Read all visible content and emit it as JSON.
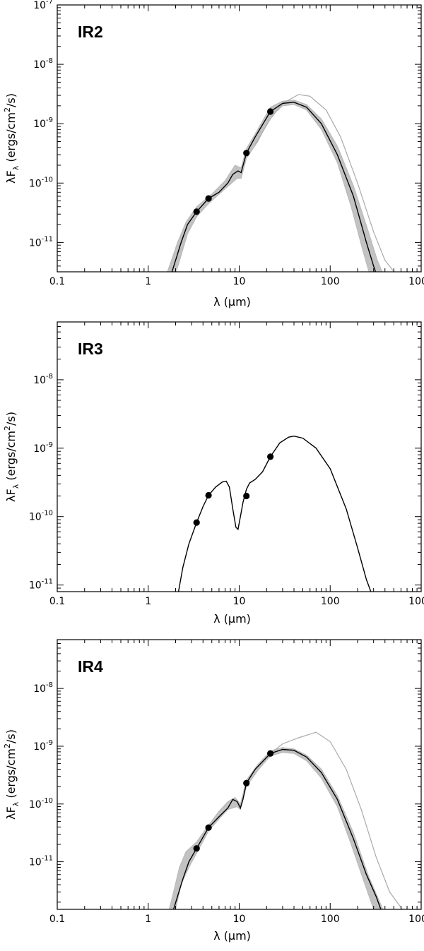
{
  "chart_data": [
    {
      "type": "line",
      "title": "IR2",
      "xlabel": "λ (μm)",
      "ylabel_main": "λF",
      "ylabel_sub": "λ",
      "ylabel_tail": " (ergs/cm",
      "ylabel_sup": "2",
      "ylabel_end": "/s)",
      "xscale": "log",
      "yscale": "log",
      "xlim": [
        0.1,
        1000
      ],
      "ylim": [
        3.2e-12,
        1e-07
      ],
      "x_ticks": [
        0.1,
        1,
        10,
        100,
        1000
      ],
      "x_tick_labels": [
        "0.1",
        "1",
        "10",
        "100",
        "1000"
      ],
      "y_ticks": [
        1e-11,
        1e-10,
        1e-09,
        1e-08,
        1e-07
      ],
      "y_tick_labels": [
        {
          "base": "10",
          "exp": "-11"
        },
        {
          "base": "10",
          "exp": "-10"
        },
        {
          "base": "10",
          "exp": "-9"
        },
        {
          "base": "10",
          "exp": "-8"
        },
        {
          "base": "10",
          "exp": "-7"
        }
      ],
      "points": [
        {
          "x": 3.4,
          "y": 3.3e-11
        },
        {
          "x": 4.6,
          "y": 5.5e-11
        },
        {
          "x": 12,
          "y": 3.2e-10
        },
        {
          "x": 22,
          "y": 1.6e-09
        }
      ],
      "best_fit": [
        [
          1.8,
          3e-12
        ],
        [
          2.0,
          5e-12
        ],
        [
          2.3,
          1e-11
        ],
        [
          2.7,
          2e-11
        ],
        [
          3.4,
          3.3e-11
        ],
        [
          4.6,
          5.5e-11
        ],
        [
          6.0,
          7e-11
        ],
        [
          7.5,
          1e-10
        ],
        [
          8.5,
          1.4e-10
        ],
        [
          9.7,
          1.6e-10
        ],
        [
          10.5,
          1.5e-10
        ],
        [
          12,
          3.2e-10
        ],
        [
          15,
          6e-10
        ],
        [
          22,
          1.6e-09
        ],
        [
          30,
          2.2e-09
        ],
        [
          40,
          2.3e-09
        ],
        [
          55,
          1.9e-09
        ],
        [
          80,
          1e-09
        ],
        [
          120,
          3e-10
        ],
        [
          180,
          6e-11
        ],
        [
          250,
          1e-11
        ],
        [
          300,
          4e-12
        ],
        [
          320,
          3e-12
        ]
      ],
      "band_upper": [
        [
          1.6,
          3e-12
        ],
        [
          1.8,
          5e-12
        ],
        [
          2.1,
          1e-11
        ],
        [
          2.6,
          2.2e-11
        ],
        [
          3.4,
          4e-11
        ],
        [
          5,
          6.5e-11
        ],
        [
          7,
          1.1e-10
        ],
        [
          9,
          2e-10
        ],
        [
          10.5,
          1.8e-10
        ],
        [
          12,
          3.8e-10
        ],
        [
          16,
          8e-10
        ],
        [
          22,
          1.9e-09
        ],
        [
          30,
          2.4e-09
        ],
        [
          40,
          2.5e-09
        ],
        [
          55,
          2.1e-09
        ],
        [
          80,
          1.2e-09
        ],
        [
          120,
          4.2e-10
        ],
        [
          180,
          9e-11
        ],
        [
          260,
          1.6e-11
        ],
        [
          330,
          5e-12
        ],
        [
          380,
          3e-12
        ]
      ],
      "band_lower": [
        [
          2.0,
          3e-12
        ],
        [
          2.3,
          6e-12
        ],
        [
          2.7,
          1.4e-11
        ],
        [
          3.4,
          2.7e-11
        ],
        [
          4.6,
          4.5e-11
        ],
        [
          7,
          8e-11
        ],
        [
          9.5,
          1.2e-10
        ],
        [
          10.5,
          1.2e-10
        ],
        [
          12,
          2.6e-10
        ],
        [
          16,
          5e-10
        ],
        [
          22,
          1.3e-09
        ],
        [
          30,
          2e-09
        ],
        [
          40,
          2.1e-09
        ],
        [
          55,
          1.7e-09
        ],
        [
          80,
          8e-10
        ],
        [
          120,
          2.2e-10
        ],
        [
          170,
          4e-11
        ],
        [
          230,
          7e-12
        ],
        [
          270,
          3e-12
        ]
      ],
      "outlier_model": [
        [
          15,
          4.5e-10
        ],
        [
          22,
          1.2e-09
        ],
        [
          30,
          2.2e-09
        ],
        [
          45,
          3.1e-09
        ],
        [
          60,
          2.9e-09
        ],
        [
          90,
          1.7e-09
        ],
        [
          130,
          6e-10
        ],
        [
          200,
          1e-10
        ],
        [
          300,
          1.5e-11
        ],
        [
          400,
          5e-12
        ],
        [
          520,
          3e-12
        ]
      ]
    },
    {
      "type": "line",
      "title": "IR3",
      "xlabel": "λ (μm)",
      "ylabel_main": "λF",
      "ylabel_sub": "λ",
      "ylabel_tail": " (ergs/cm",
      "ylabel_sup": "2",
      "ylabel_end": "/s)",
      "xscale": "log",
      "yscale": "log",
      "xlim": [
        0.1,
        1000
      ],
      "ylim": [
        8e-12,
        7e-08
      ],
      "x_ticks": [
        0.1,
        1,
        10,
        100,
        1000
      ],
      "x_tick_labels": [
        "0.1",
        "1",
        "10",
        "100",
        "1000"
      ],
      "y_ticks": [
        1e-11,
        1e-10,
        1e-09,
        1e-08
      ],
      "y_tick_labels": [
        {
          "base": "10",
          "exp": "-11"
        },
        {
          "base": "10",
          "exp": "-10"
        },
        {
          "base": "10",
          "exp": "-9"
        },
        {
          "base": "10",
          "exp": "-8"
        }
      ],
      "points": [
        {
          "x": 3.4,
          "y": 8.2e-11
        },
        {
          "x": 4.6,
          "y": 2.05e-10
        },
        {
          "x": 12,
          "y": 2e-10
        },
        {
          "x": 22,
          "y": 7.5e-10
        }
      ],
      "best_fit": [
        [
          2.15,
          8e-12
        ],
        [
          2.4,
          1.8e-11
        ],
        [
          2.8,
          4e-11
        ],
        [
          3.4,
          8.2e-11
        ],
        [
          4.0,
          1.4e-10
        ],
        [
          4.6,
          2.05e-10
        ],
        [
          5.5,
          2.7e-10
        ],
        [
          6.5,
          3.2e-10
        ],
        [
          7.2,
          3.3e-10
        ],
        [
          7.8,
          2.7e-10
        ],
        [
          8.5,
          1.3e-10
        ],
        [
          9.2,
          7e-11
        ],
        [
          9.7,
          6.5e-11
        ],
        [
          10.3,
          1e-10
        ],
        [
          11,
          1.6e-10
        ],
        [
          12,
          2.5e-10
        ],
        [
          13,
          3.1e-10
        ],
        [
          15,
          3.5e-10
        ],
        [
          18,
          4.5e-10
        ],
        [
          22,
          7.5e-10
        ],
        [
          28,
          1.2e-09
        ],
        [
          35,
          1.45e-09
        ],
        [
          40,
          1.5e-09
        ],
        [
          50,
          1.4e-09
        ],
        [
          70,
          1e-09
        ],
        [
          100,
          5e-10
        ],
        [
          150,
          1.3e-10
        ],
        [
          200,
          3.5e-11
        ],
        [
          250,
          1.2e-11
        ],
        [
          280,
          8e-12
        ]
      ],
      "band_upper": [],
      "band_lower": [],
      "outlier_model": []
    },
    {
      "type": "line",
      "title": "IR4",
      "xlabel": "λ (μm)",
      "ylabel_main": "λF",
      "ylabel_sub": "λ",
      "ylabel_tail": " (ergs/cm",
      "ylabel_sup": "2",
      "ylabel_end": "/s)",
      "xscale": "log",
      "yscale": "log",
      "xlim": [
        0.1,
        1000
      ],
      "ylim": [
        1.5e-12,
        7e-08
      ],
      "x_ticks": [
        0.1,
        1,
        10,
        100,
        1000
      ],
      "x_tick_labels": [
        "0.1",
        "1",
        "10",
        "100",
        "1000"
      ],
      "y_ticks": [
        1e-11,
        1e-10,
        1e-09,
        1e-08
      ],
      "y_tick_labels": [
        {
          "base": "10",
          "exp": "-11"
        },
        {
          "base": "10",
          "exp": "-10"
        },
        {
          "base": "10",
          "exp": "-9"
        },
        {
          "base": "10",
          "exp": "-8"
        }
      ],
      "points": [
        {
          "x": 3.4,
          "y": 1.7e-11
        },
        {
          "x": 4.6,
          "y": 3.9e-11
        },
        {
          "x": 12,
          "y": 2.3e-10
        },
        {
          "x": 22,
          "y": 7.5e-10
        }
      ],
      "best_fit": [
        [
          1.9,
          1.5e-12
        ],
        [
          2.1,
          2.5e-12
        ],
        [
          2.4,
          5e-12
        ],
        [
          2.8,
          1e-11
        ],
        [
          3.4,
          1.7e-11
        ],
        [
          4.6,
          3.9e-11
        ],
        [
          6,
          6e-11
        ],
        [
          7.5,
          8.5e-11
        ],
        [
          8.5,
          1.2e-10
        ],
        [
          9.5,
          1.1e-10
        ],
        [
          10.3,
          8.5e-11
        ],
        [
          11,
          1.2e-10
        ],
        [
          12,
          2.3e-10
        ],
        [
          15,
          4e-10
        ],
        [
          22,
          7.5e-10
        ],
        [
          30,
          8.8e-10
        ],
        [
          40,
          8.5e-10
        ],
        [
          55,
          6.5e-10
        ],
        [
          80,
          3.5e-10
        ],
        [
          120,
          1.2e-10
        ],
        [
          180,
          2.5e-11
        ],
        [
          250,
          6e-12
        ],
        [
          320,
          2.5e-12
        ],
        [
          360,
          1.5e-12
        ]
      ],
      "band_upper": [
        [
          1.7,
          1.5e-12
        ],
        [
          1.9,
          3e-12
        ],
        [
          2.2,
          8e-12
        ],
        [
          2.6,
          1.5e-11
        ],
        [
          3.4,
          2.2e-11
        ],
        [
          4.6,
          4.3e-11
        ],
        [
          6,
          7.5e-11
        ],
        [
          7.5,
          1.1e-10
        ],
        [
          9,
          1.3e-10
        ],
        [
          10.3,
          1e-10
        ],
        [
          12,
          2.6e-10
        ],
        [
          16,
          4.8e-10
        ],
        [
          22,
          8.3e-10
        ],
        [
          30,
          9.5e-10
        ],
        [
          40,
          9e-10
        ],
        [
          55,
          7e-10
        ],
        [
          80,
          4e-10
        ],
        [
          120,
          1.4e-10
        ],
        [
          180,
          3.2e-11
        ],
        [
          260,
          6e-12
        ],
        [
          330,
          2.5e-12
        ],
        [
          380,
          1.5e-12
        ]
      ],
      "band_lower": [
        [
          2.0,
          1.5e-12
        ],
        [
          2.3,
          4e-12
        ],
        [
          2.8,
          8e-12
        ],
        [
          3.4,
          1.4e-11
        ],
        [
          4.6,
          3.4e-11
        ],
        [
          6,
          5.5e-11
        ],
        [
          7.5,
          8e-11
        ],
        [
          9.5,
          9e-11
        ],
        [
          10.3,
          8e-11
        ],
        [
          12,
          2e-10
        ],
        [
          16,
          3.8e-10
        ],
        [
          22,
          6.8e-10
        ],
        [
          30,
          7.8e-10
        ],
        [
          40,
          7.5e-10
        ],
        [
          55,
          5.6e-10
        ],
        [
          80,
          2.8e-10
        ],
        [
          120,
          9e-11
        ],
        [
          170,
          2e-11
        ],
        [
          230,
          5e-12
        ],
        [
          300,
          1.5e-12
        ]
      ],
      "outlier_model": [
        [
          15,
          4e-10
        ],
        [
          22,
          7.5e-10
        ],
        [
          30,
          1.1e-09
        ],
        [
          45,
          1.4e-09
        ],
        [
          70,
          1.75e-09
        ],
        [
          100,
          1.2e-09
        ],
        [
          150,
          4e-10
        ],
        [
          220,
          8e-11
        ],
        [
          320,
          1.2e-11
        ],
        [
          450,
          3e-12
        ],
        [
          620,
          1.5e-12
        ]
      ]
    }
  ]
}
